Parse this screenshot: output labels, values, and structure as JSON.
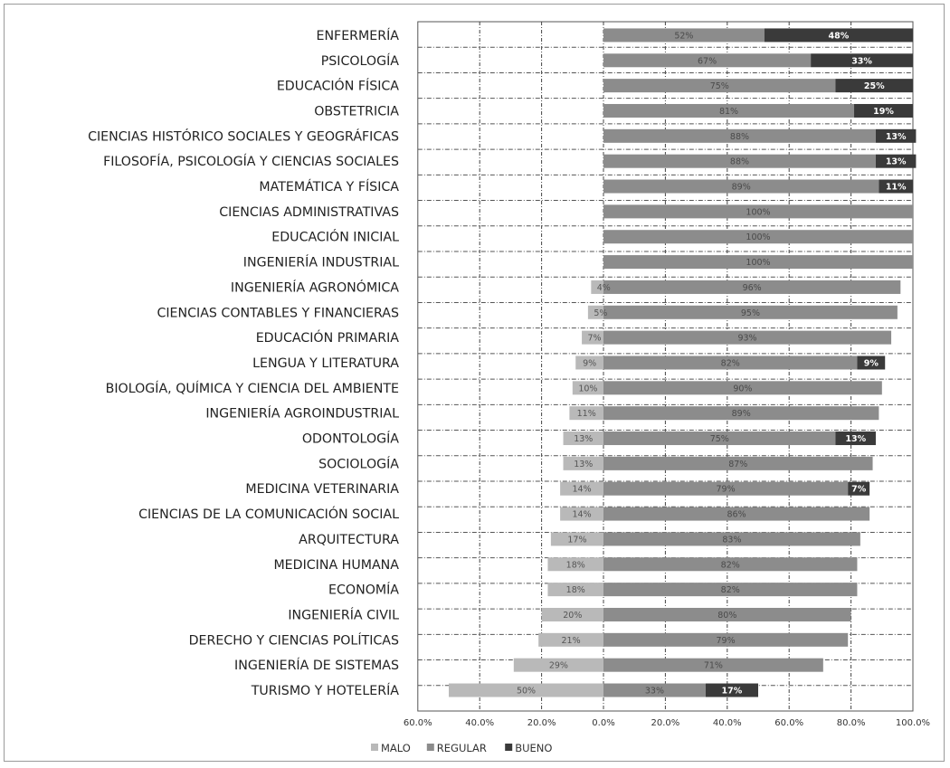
{
  "chart_data": {
    "type": "bar",
    "orientation": "horizontal",
    "stacking": "diverging",
    "categories": [
      "ENFERMERÍA",
      "PSICOLOGÍA",
      "EDUCACIÓN FÍSICA",
      "OBSTETRICIA",
      "CIENCIAS HISTÓRICO SOCIALES Y GEOGRÁFICAS",
      "FILOSOFÍA, PSICOLOGÍA Y CIENCIAS SOCIALES",
      "MATEMÁTICA Y FÍSICA",
      "CIENCIAS ADMINISTRATIVAS",
      "EDUCACIÓN INICIAL",
      "INGENIERÍA INDUSTRIAL",
      "INGENIERÍA AGRONÓMICA",
      "CIENCIAS CONTABLES Y FINANCIERAS",
      "EDUCACIÓN PRIMARIA",
      "LENGUA Y LITERATURA",
      "BIOLOGÍA, QUÍMICA Y CIENCIA DEL AMBIENTE",
      "INGENIERÍA AGROINDUSTRIAL",
      "ODONTOLOGÍA",
      "SOCIOLOGÍA",
      "MEDICINA VETERINARIA",
      "CIENCIAS DE LA COMUNICACIÓN SOCIAL",
      "ARQUITECTURA",
      "MEDICINA HUMANA",
      "ECONOMÍA",
      "INGENIERÍA CIVIL",
      "DERECHO Y CIENCIAS POLÍTICAS",
      "INGENIERÍA DE SISTEMAS",
      "TURISMO Y HOTELERÍA"
    ],
    "series": [
      {
        "name": "MALO",
        "color": "#b9b9b9",
        "values": [
          0,
          0,
          0,
          0,
          0,
          0,
          0,
          0,
          0,
          0,
          4,
          5,
          7,
          9,
          10,
          11,
          13,
          13,
          14,
          14,
          17,
          18,
          18,
          20,
          21,
          29,
          50
        ],
        "labels": [
          "",
          "",
          "",
          "",
          "",
          "",
          "",
          "",
          "",
          "",
          "4%",
          "5%",
          "7%",
          "9%",
          "10%",
          "11%",
          "13%",
          "13%",
          "14%",
          "14%",
          "17%",
          "18%",
          "18%",
          "20%",
          "21%",
          "29%",
          "50%"
        ]
      },
      {
        "name": "REGULAR",
        "color": "#8c8c8c",
        "values": [
          52,
          67,
          75,
          81,
          88,
          88,
          89,
          100,
          100,
          100,
          96,
          95,
          93,
          82,
          90,
          89,
          75,
          87,
          79,
          86,
          83,
          82,
          82,
          80,
          79,
          71,
          33
        ],
        "labels": [
          "52%",
          "67%",
          "75%",
          "81%",
          "88%",
          "88%",
          "89%",
          "100%",
          "100%",
          "100%",
          "96%",
          "95%",
          "93%",
          "82%",
          "90%",
          "89%",
          "75%",
          "87%",
          "79%",
          "86%",
          "83%",
          "82%",
          "82%",
          "80%",
          "79%",
          "71%",
          "33%"
        ]
      },
      {
        "name": "BUENO",
        "color": "#3a3a3a",
        "values": [
          48,
          33,
          25,
          19,
          13,
          13,
          11,
          0,
          0,
          0,
          0,
          0,
          0,
          9,
          0,
          0,
          13,
          0,
          7,
          0,
          0,
          0,
          0,
          0,
          0,
          0,
          17
        ],
        "labels": [
          "48%",
          "33%",
          "25%",
          "19%",
          "13%",
          "13%",
          "11%",
          "",
          "",
          "",
          "",
          "",
          "",
          "9%",
          "",
          "",
          "13%",
          "",
          "7%",
          "",
          "",
          "",
          "",
          "",
          "",
          "",
          "17%"
        ]
      }
    ],
    "xlim": [
      -60,
      100
    ],
    "xticks": [
      -60,
      -40,
      -20,
      0,
      20,
      40,
      60,
      80,
      100
    ],
    "xtick_labels": [
      "60.0%",
      "40.0%",
      "20.0%",
      "0.0%",
      "20.0%",
      "40.0%",
      "60.0%",
      "80.0%",
      "100.0%"
    ],
    "grid": true,
    "legend_position": "bottom",
    "legend": [
      "MALO",
      "REGULAR",
      "BUENO"
    ]
  }
}
